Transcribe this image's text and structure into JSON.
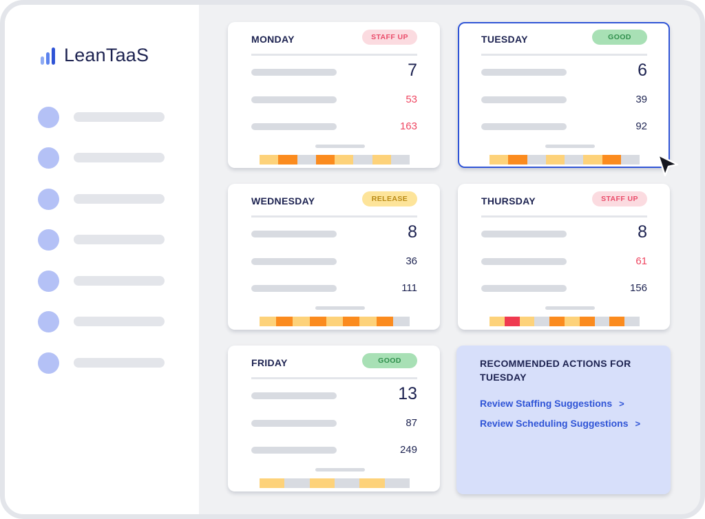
{
  "brand": {
    "name": "LeanTaaS"
  },
  "sidebar": {
    "items": [
      {},
      {},
      {},
      {},
      {},
      {},
      {}
    ]
  },
  "cards": [
    {
      "day": "MONDAY",
      "badge": "STAFF UP",
      "status": "staff",
      "values": [
        "7",
        "53",
        "163"
      ],
      "value_colors": [
        "#1c2250",
        "#ef4560",
        "#ef4560"
      ],
      "selected": false,
      "strip": [
        "#fdd27a",
        "#fb8b1e",
        "#d8dbe1",
        "#fb8b1e",
        "#fdd27a",
        "#d8dbe1",
        "#fdd27a",
        "#d8dbe1"
      ]
    },
    {
      "day": "TUESDAY",
      "badge": "GOOD",
      "status": "good",
      "values": [
        "6",
        "39",
        "92"
      ],
      "value_colors": [
        "#1c2250",
        "#1c2250",
        "#1c2250"
      ],
      "selected": true,
      "strip": [
        "#fdd27a",
        "#fb8b1e",
        "#d8dbe1",
        "#fdd27a",
        "#d8dbe1",
        "#fdd27a",
        "#fb8b1e",
        "#d8dbe1"
      ]
    },
    {
      "day": "WEDNESDAY",
      "badge": "RELEASE",
      "status": "release",
      "values": [
        "8",
        "36",
        "111"
      ],
      "value_colors": [
        "#1c2250",
        "#1c2250",
        "#1c2250"
      ],
      "selected": false,
      "strip": [
        "#fdd27a",
        "#fb8b1e",
        "#fdd27a",
        "#fb8b1e",
        "#fdd27a",
        "#fb8b1e",
        "#fdd27a",
        "#fb8b1e",
        "#d8dbe1"
      ]
    },
    {
      "day": "THURSDAY",
      "badge": "STAFF UP",
      "status": "staff",
      "values": [
        "8",
        "61",
        "156"
      ],
      "value_colors": [
        "#1c2250",
        "#ef4560",
        "#1c2250"
      ],
      "selected": false,
      "strip": [
        "#fdd27a",
        "#ef3a50",
        "#fdd27a",
        "#d8dbe1",
        "#fb8b1e",
        "#fdd27a",
        "#fb8b1e",
        "#d8dbe1",
        "#fb8b1e",
        "#d8dbe1"
      ]
    },
    {
      "day": "FRIDAY",
      "badge": "GOOD",
      "status": "good",
      "values": [
        "13",
        "87",
        "249"
      ],
      "value_colors": [
        "#1c2250",
        "#1c2250",
        "#1c2250"
      ],
      "selected": false,
      "strip": [
        "#fdd27a",
        "#d8dbe1",
        "#fdd27a",
        "#d8dbe1",
        "#fdd27a",
        "#d8dbe1"
      ]
    }
  ],
  "recommended": {
    "title": "RECOMMENDED ACTIONS FOR TUESDAY",
    "links": [
      {
        "label": "Review Staffing Suggestions",
        "chevron": ">"
      },
      {
        "label": "Review Scheduling Suggestions",
        "chevron": ">"
      }
    ]
  },
  "colors": {
    "accent": "#2f54d6",
    "navy": "#1c2250",
    "danger": "#ef4560",
    "orange": "#fb8b1e",
    "yellow": "#fdd27a",
    "nav_dot": "#b4c1f6",
    "panel_bg": "#d7dffa"
  }
}
